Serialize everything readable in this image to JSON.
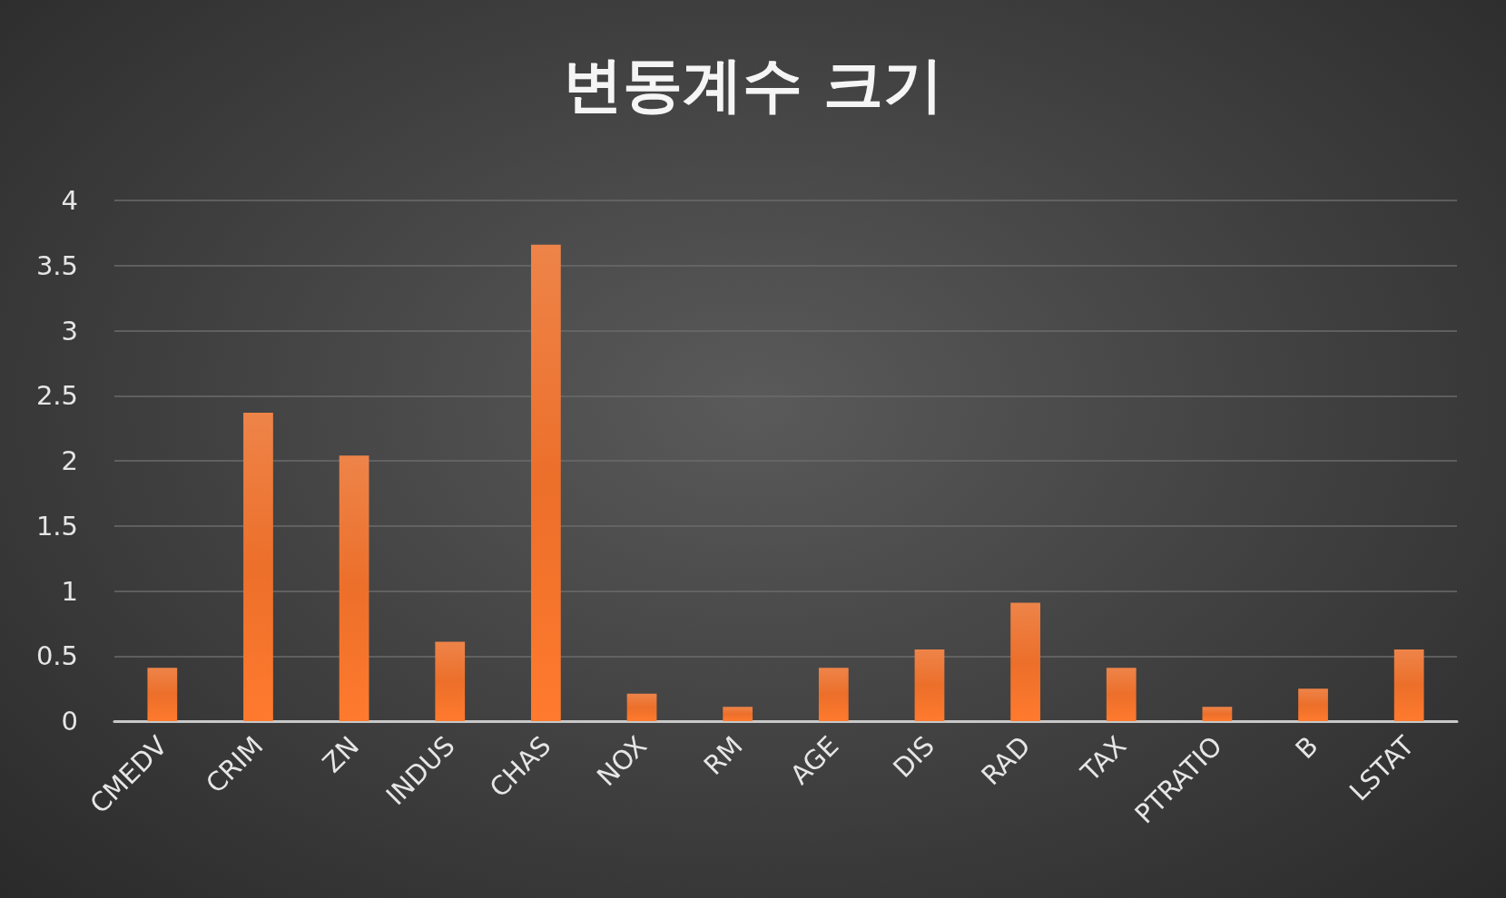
{
  "chart_data": {
    "type": "bar",
    "title": "변동계수 크기",
    "categories": [
      "CMEDV",
      "CRIM",
      "ZN",
      "INDUS",
      "CHAS",
      "NOX",
      "RM",
      "AGE",
      "DIS",
      "RAD",
      "TAX",
      "PTRATIO",
      "B",
      "LSTAT"
    ],
    "values": [
      0.41,
      2.37,
      2.04,
      0.61,
      3.66,
      0.21,
      0.11,
      0.41,
      0.55,
      0.91,
      0.41,
      0.11,
      0.25,
      0.55
    ],
    "color": "#ec6f2a",
    "ylim": [
      0,
      4
    ],
    "yticks": [
      0,
      0.5,
      1,
      1.5,
      2,
      2.5,
      3,
      3.5,
      4
    ],
    "grid": true
  }
}
